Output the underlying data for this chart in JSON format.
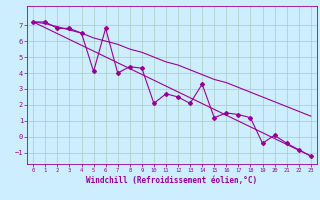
{
  "xlabel": "Windchill (Refroidissement éolien,°C)",
  "bg_color": "#cceeff",
  "line_color": "#990099",
  "grid_color": "#aaccbb",
  "xlim": [
    -0.5,
    23.5
  ],
  "ylim": [
    -1.7,
    8.2
  ],
  "xticks": [
    0,
    1,
    2,
    3,
    4,
    5,
    6,
    7,
    8,
    9,
    10,
    11,
    12,
    13,
    14,
    15,
    16,
    17,
    18,
    19,
    20,
    21,
    22,
    23
  ],
  "yticks": [
    -1,
    0,
    1,
    2,
    3,
    4,
    5,
    6,
    7
  ],
  "series1_x": [
    0,
    1,
    2,
    3,
    4,
    5,
    6,
    7,
    8,
    9,
    10,
    11,
    12,
    13,
    14,
    15,
    16,
    17,
    18,
    19,
    20,
    21,
    22,
    23
  ],
  "series1_y": [
    7.2,
    7.2,
    6.8,
    6.8,
    6.5,
    4.1,
    6.8,
    4.0,
    4.4,
    4.3,
    2.1,
    2.7,
    2.5,
    2.1,
    3.3,
    1.2,
    1.5,
    1.4,
    1.2,
    -0.4,
    0.1,
    -0.4,
    -0.8,
    -1.2
  ],
  "series2_x": [
    0,
    1,
    2,
    3,
    4,
    5,
    6,
    7,
    8,
    9,
    10,
    11,
    12,
    13,
    14,
    15,
    16,
    17,
    18,
    19,
    20,
    21,
    22,
    23
  ],
  "series2_y": [
    7.2,
    7.1,
    6.9,
    6.7,
    6.5,
    6.2,
    6.0,
    5.8,
    5.5,
    5.3,
    5.0,
    4.7,
    4.5,
    4.2,
    3.9,
    3.6,
    3.4,
    3.1,
    2.8,
    2.5,
    2.2,
    1.9,
    1.6,
    1.3
  ],
  "series3_x": [
    0,
    23
  ],
  "series3_y": [
    7.2,
    -1.2
  ],
  "marker": "D",
  "marker_size": 2,
  "line_width": 0.8,
  "tick_fontsize_x": 4.0,
  "tick_fontsize_y": 5.0,
  "xlabel_fontsize": 5.5
}
